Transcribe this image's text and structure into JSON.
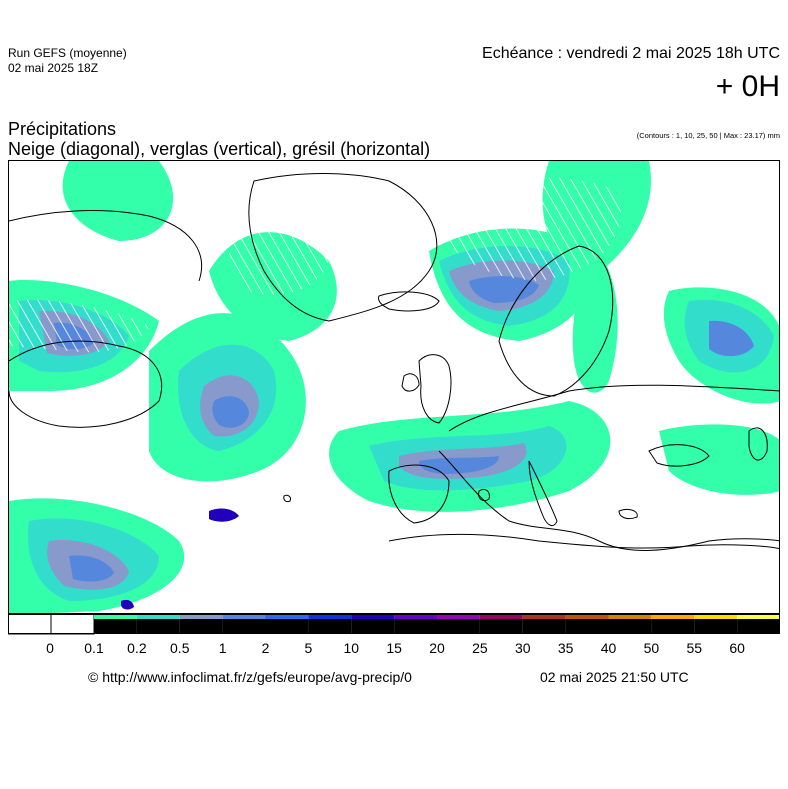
{
  "header": {
    "run_name": "Run GEFS (moyenne)",
    "run_date": "02 mai 2025 18Z",
    "echeance": "Echéance : vendredi 2 mai 2025 18h UTC",
    "lead": "+ 0H"
  },
  "title": {
    "line1": "Précipitations",
    "line2": "Neige (diagonal), verglas (vertical), grésil (horizontal)",
    "contours": "(Contours : 1, 10, 25, 50 | Max : 23.17) mm"
  },
  "legend": {
    "ticks": [
      "0",
      "0.1",
      "0.2",
      "0.5",
      "1",
      "2",
      "5",
      "10",
      "15",
      "20",
      "25",
      "30",
      "35",
      "40",
      "50",
      "55",
      "60"
    ],
    "colors": [
      "#ffffff",
      "#ffffff",
      "#33ffaa",
      "#33ddcc",
      "#8899cc",
      "#5588dd",
      "#3366ee",
      "#1133dd",
      "#2200bb",
      "#6600cc",
      "#9900bb",
      "#990066",
      "#aa3322",
      "#bb5511",
      "#cc8800",
      "#ffaa00",
      "#ffdd00",
      "#ffff44"
    ]
  },
  "colors": {
    "precip_light": "#33ffaa",
    "precip_low": "#33ddcc",
    "precip_mid": "#8899cc",
    "precip_high": "#5588dd",
    "precip_heavy": "#3366ee",
    "precip_max": "#2200bb",
    "coastline": "#000000"
  },
  "footer": {
    "credit": "© http://www.infoclimat.fr/z/gefs/europe/avg-precip/0",
    "updated": "02 mai 2025 21:50 UTC"
  }
}
